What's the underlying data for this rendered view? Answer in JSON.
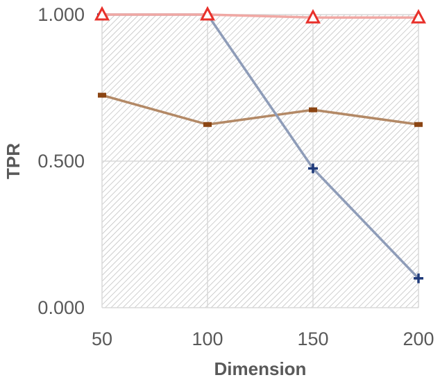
{
  "chart_data": {
    "type": "line",
    "title": "",
    "xlabel": "Dimension",
    "ylabel": "TPR",
    "x": [
      50,
      100,
      150,
      200
    ],
    "x_tick_labels": [
      "50",
      "100",
      "150",
      "200"
    ],
    "ylim": [
      0,
      1
    ],
    "y_ticks": [
      0,
      0.5,
      1
    ],
    "y_tick_labels": [
      "0.000",
      "0.500",
      "1.000"
    ],
    "grid": true,
    "legend": "none",
    "series": [
      {
        "values": [
          0.725,
          0.625,
          0.675,
          0.625
        ],
        "color": "#b38966",
        "marker": "dash",
        "marker_color": "#8b4513"
      },
      {
        "values": [
          1.0,
          1.0,
          0.475,
          0.1
        ],
        "color": "#8e9cb8",
        "marker": "plus",
        "marker_color": "#1f3a7a"
      },
      {
        "values": [
          1.0,
          1.0,
          0.99,
          0.99
        ],
        "color": "#f0a8a4",
        "marker": "triangle",
        "marker_color": "#e8302a"
      }
    ]
  }
}
